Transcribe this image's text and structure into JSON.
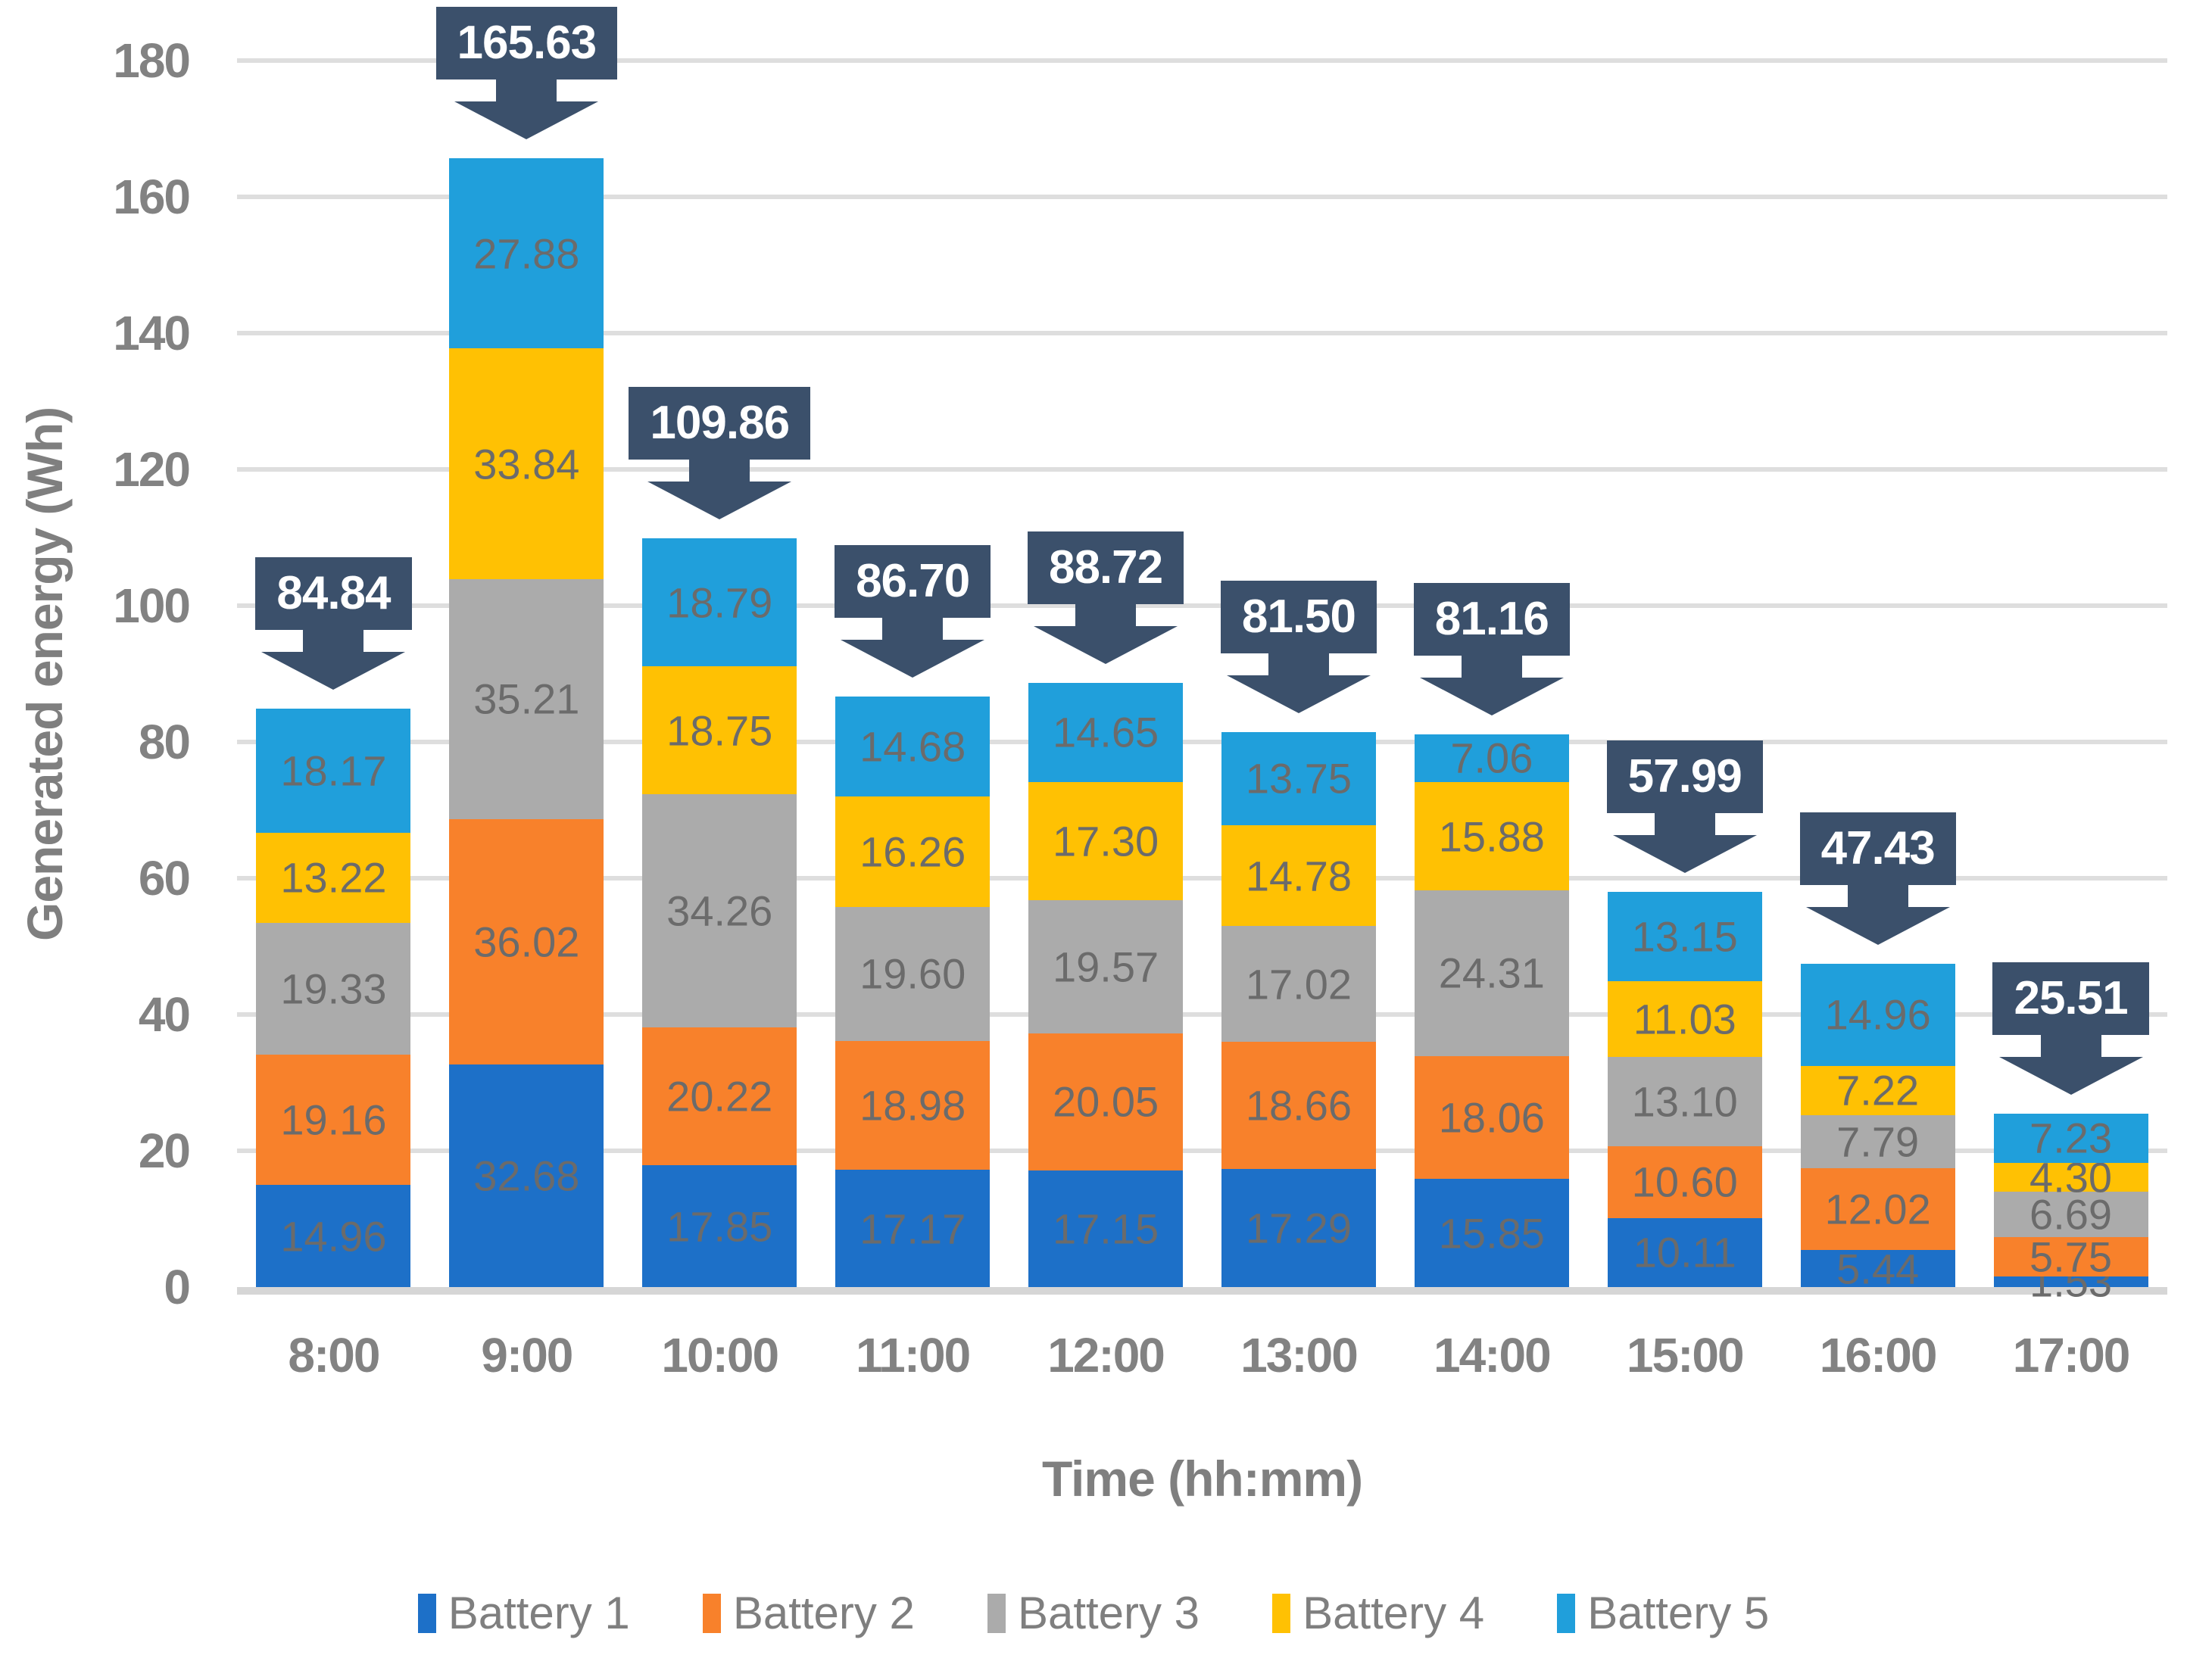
{
  "chart_data": {
    "type": "bar",
    "stacked": true,
    "title": "",
    "xlabel": "Time (hh:mm)",
    "ylabel": "Generated energy (Wh)",
    "ylim": [
      0,
      180
    ],
    "ytick_step": 20,
    "yticks": [
      0,
      20,
      40,
      60,
      80,
      100,
      120,
      140,
      160,
      180
    ],
    "grid": true,
    "legend_position": "bottom",
    "categories": [
      "8:00",
      "9:00",
      "10:00",
      "11:00",
      "12:00",
      "13:00",
      "14:00",
      "15:00",
      "16:00",
      "17:00"
    ],
    "series": [
      {
        "name": "Battery 1",
        "color": "#1d70c8",
        "values": [
          14.96,
          32.68,
          17.85,
          17.17,
          17.15,
          17.29,
          15.85,
          10.11,
          5.44,
          1.53
        ]
      },
      {
        "name": "Battery 2",
        "color": "#f8812b",
        "values": [
          19.16,
          36.02,
          20.22,
          18.98,
          20.05,
          18.66,
          18.06,
          10.6,
          12.02,
          5.75
        ]
      },
      {
        "name": "Battery 3",
        "color": "#ababab",
        "values": [
          19.33,
          35.21,
          34.26,
          19.6,
          19.57,
          17.02,
          24.31,
          13.1,
          7.79,
          6.69
        ]
      },
      {
        "name": "Battery 4",
        "color": "#ffc103",
        "values": [
          13.22,
          33.84,
          18.75,
          16.26,
          17.3,
          14.78,
          15.88,
          11.03,
          7.22,
          4.3
        ]
      },
      {
        "name": "Battery 5",
        "color": "#209fdb",
        "values": [
          18.17,
          27.88,
          18.79,
          14.68,
          14.65,
          13.75,
          7.06,
          13.15,
          14.96,
          7.23
        ]
      }
    ],
    "totals": [
      "84.84",
      "165.63",
      "109.86",
      "86.70",
      "88.72",
      "81.50",
      "81.16",
      "57.99",
      "47.43",
      "25.51"
    ],
    "callout_color": "#3b506b",
    "colors": {
      "gridline": "#dedede",
      "axis_line": "#d6d6d6",
      "tick_label": "#828282",
      "axis_title": "#7f7f7f",
      "segment_label": "#6b6b6b",
      "callout_text": "#ffffff"
    }
  }
}
